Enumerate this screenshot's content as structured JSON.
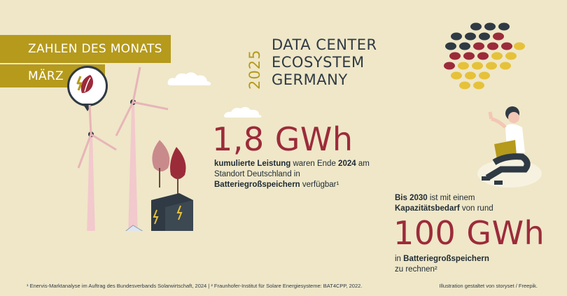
{
  "banner": {
    "label": "ZAHLEN DES MONATS",
    "month": "MÄRZ"
  },
  "header": {
    "year": "2025",
    "title_lines": [
      "DATA CENTER",
      "ECOSYSTEM",
      "GERMANY"
    ]
  },
  "stat1": {
    "value": "1,8 GWh",
    "line1_bold": "kumulierte Leistung",
    "line1_mid": " waren Ende ",
    "line1_year": "2024",
    "line1_end": " am",
    "line2": "Standort Deutschland in",
    "line3_bold": "Batteriegroßspeichern",
    "line3_end": " verfügbar¹"
  },
  "stat2": {
    "intro_year": "Bis 2030",
    "intro_rest": " ist mit einem",
    "intro_bold": "Kapazitätsbedarf",
    "intro_end": " von rund",
    "value": "100 GWh",
    "out_pre": "in ",
    "out_bold": "Batteriegroßspeichern",
    "out_line2": "zu rechnen²"
  },
  "footer": {
    "footnote": "¹ Enervis-Marktanalyse im Auftrag des Bundesverbands Solarwirtschaft, 2024 | ² Fraunhofer-Institut für Solare Energiesysteme: BAT4CPP, 2022.",
    "credit": "Illustration gestaltet von storyset / Freepik."
  },
  "colors": {
    "background": "#efe7c8",
    "gold": "#b59a1c",
    "accent_red": "#9c2b3a",
    "text_dark": "#2f3a44"
  },
  "icons": {
    "badge": "lightning-leaf-icon",
    "logo": "dot-grid-logo"
  }
}
